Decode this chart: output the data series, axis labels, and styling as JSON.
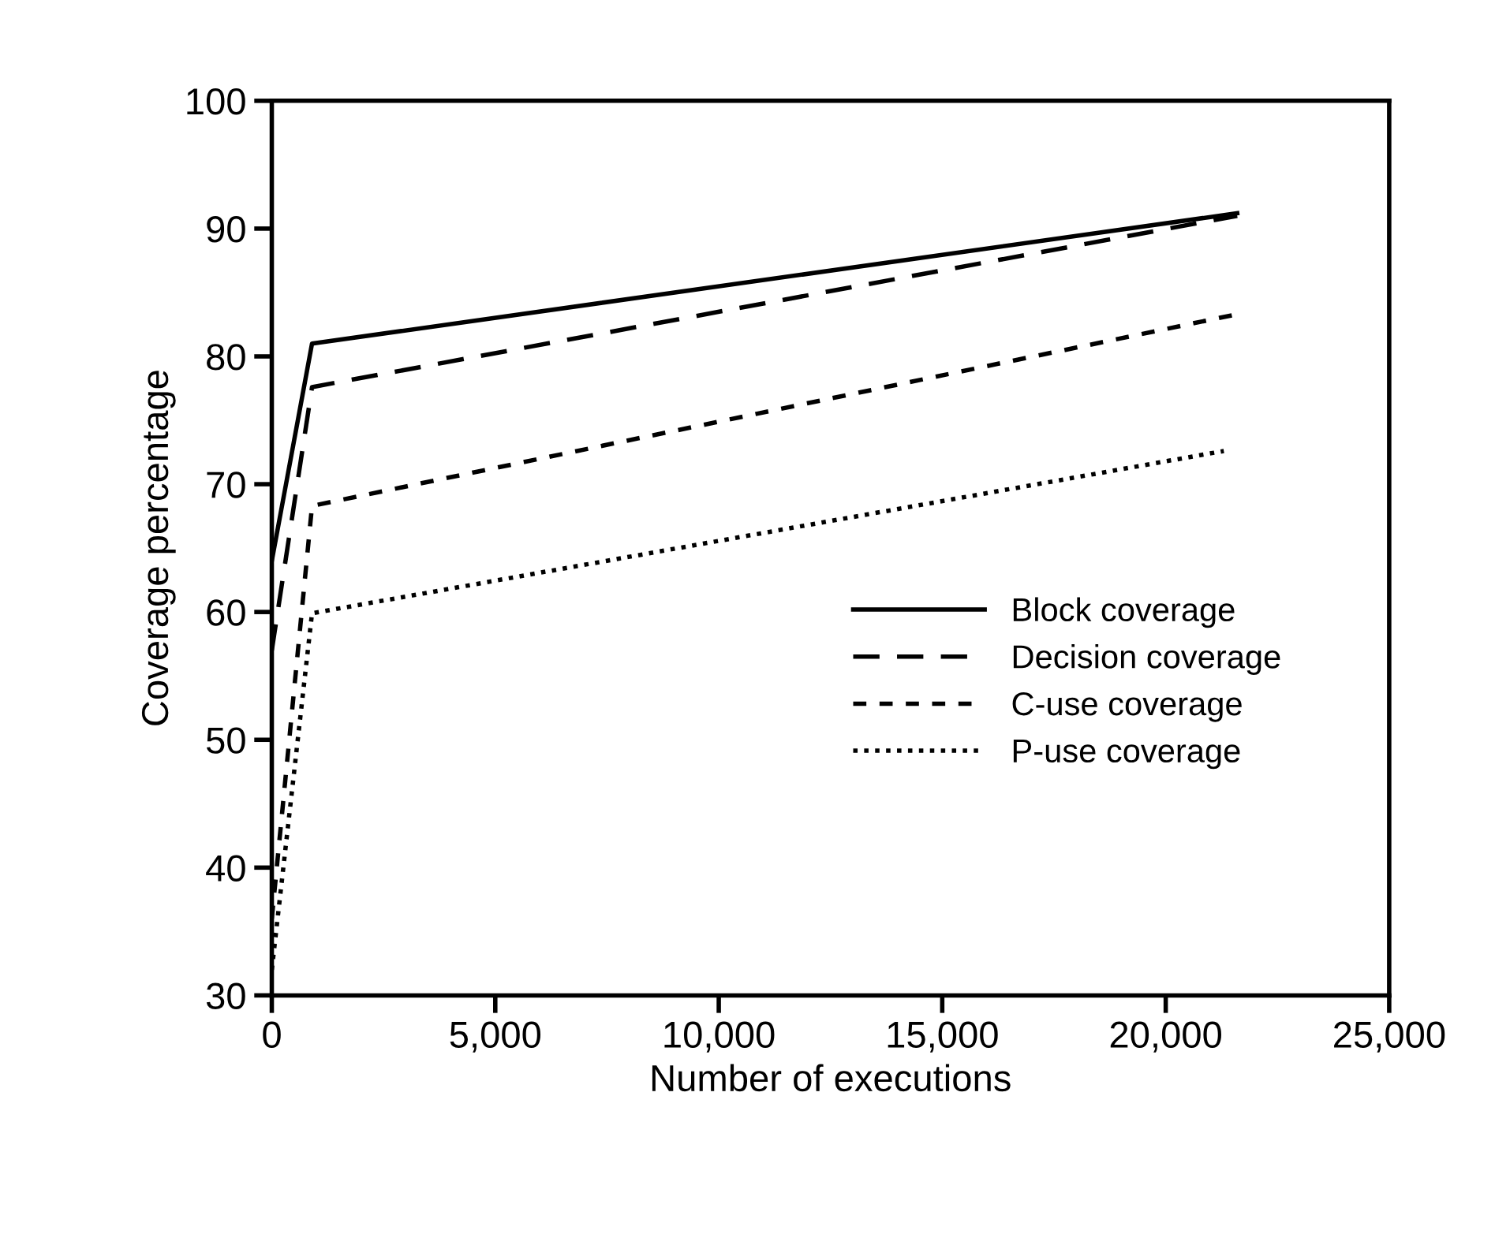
{
  "chart_data": {
    "type": "line",
    "xlabel": "Number of executions",
    "ylabel": "Coverage percentage",
    "xlim": [
      0,
      25000
    ],
    "ylim": [
      30,
      100
    ],
    "xticks": [
      {
        "value": 0,
        "label": "0"
      },
      {
        "value": 5000,
        "label": "5,000"
      },
      {
        "value": 10000,
        "label": "10,000"
      },
      {
        "value": 15000,
        "label": "15,000"
      },
      {
        "value": 20000,
        "label": "20,000"
      },
      {
        "value": 25000,
        "label": "25,000"
      }
    ],
    "yticks": [
      30,
      40,
      50,
      60,
      70,
      80,
      90,
      100
    ],
    "legend": "bottom right",
    "grid": false,
    "marker": "none",
    "series": [
      {
        "name": "Block coverage",
        "color": "#000000",
        "line_style": "solid",
        "x": [
          0,
          900,
          21600
        ],
        "values": [
          64,
          81,
          91.2
        ]
      },
      {
        "name": "Decision coverage",
        "color": "#000000",
        "line_style": "dashed",
        "x": [
          0,
          900,
          21600
        ],
        "values": [
          57,
          77.6,
          91
        ]
      },
      {
        "name": "C-use coverage",
        "color": "#000000",
        "line_style": "dotted",
        "x": [
          0,
          900,
          21600
        ],
        "values": [
          36,
          68.3,
          83.3
        ]
      },
      {
        "name": "P-use coverage",
        "color": "#000000",
        "line_style": "dotted",
        "x": [
          0,
          900,
          21300
        ],
        "values": [
          32,
          59.9,
          72.6
        ]
      }
    ]
  }
}
